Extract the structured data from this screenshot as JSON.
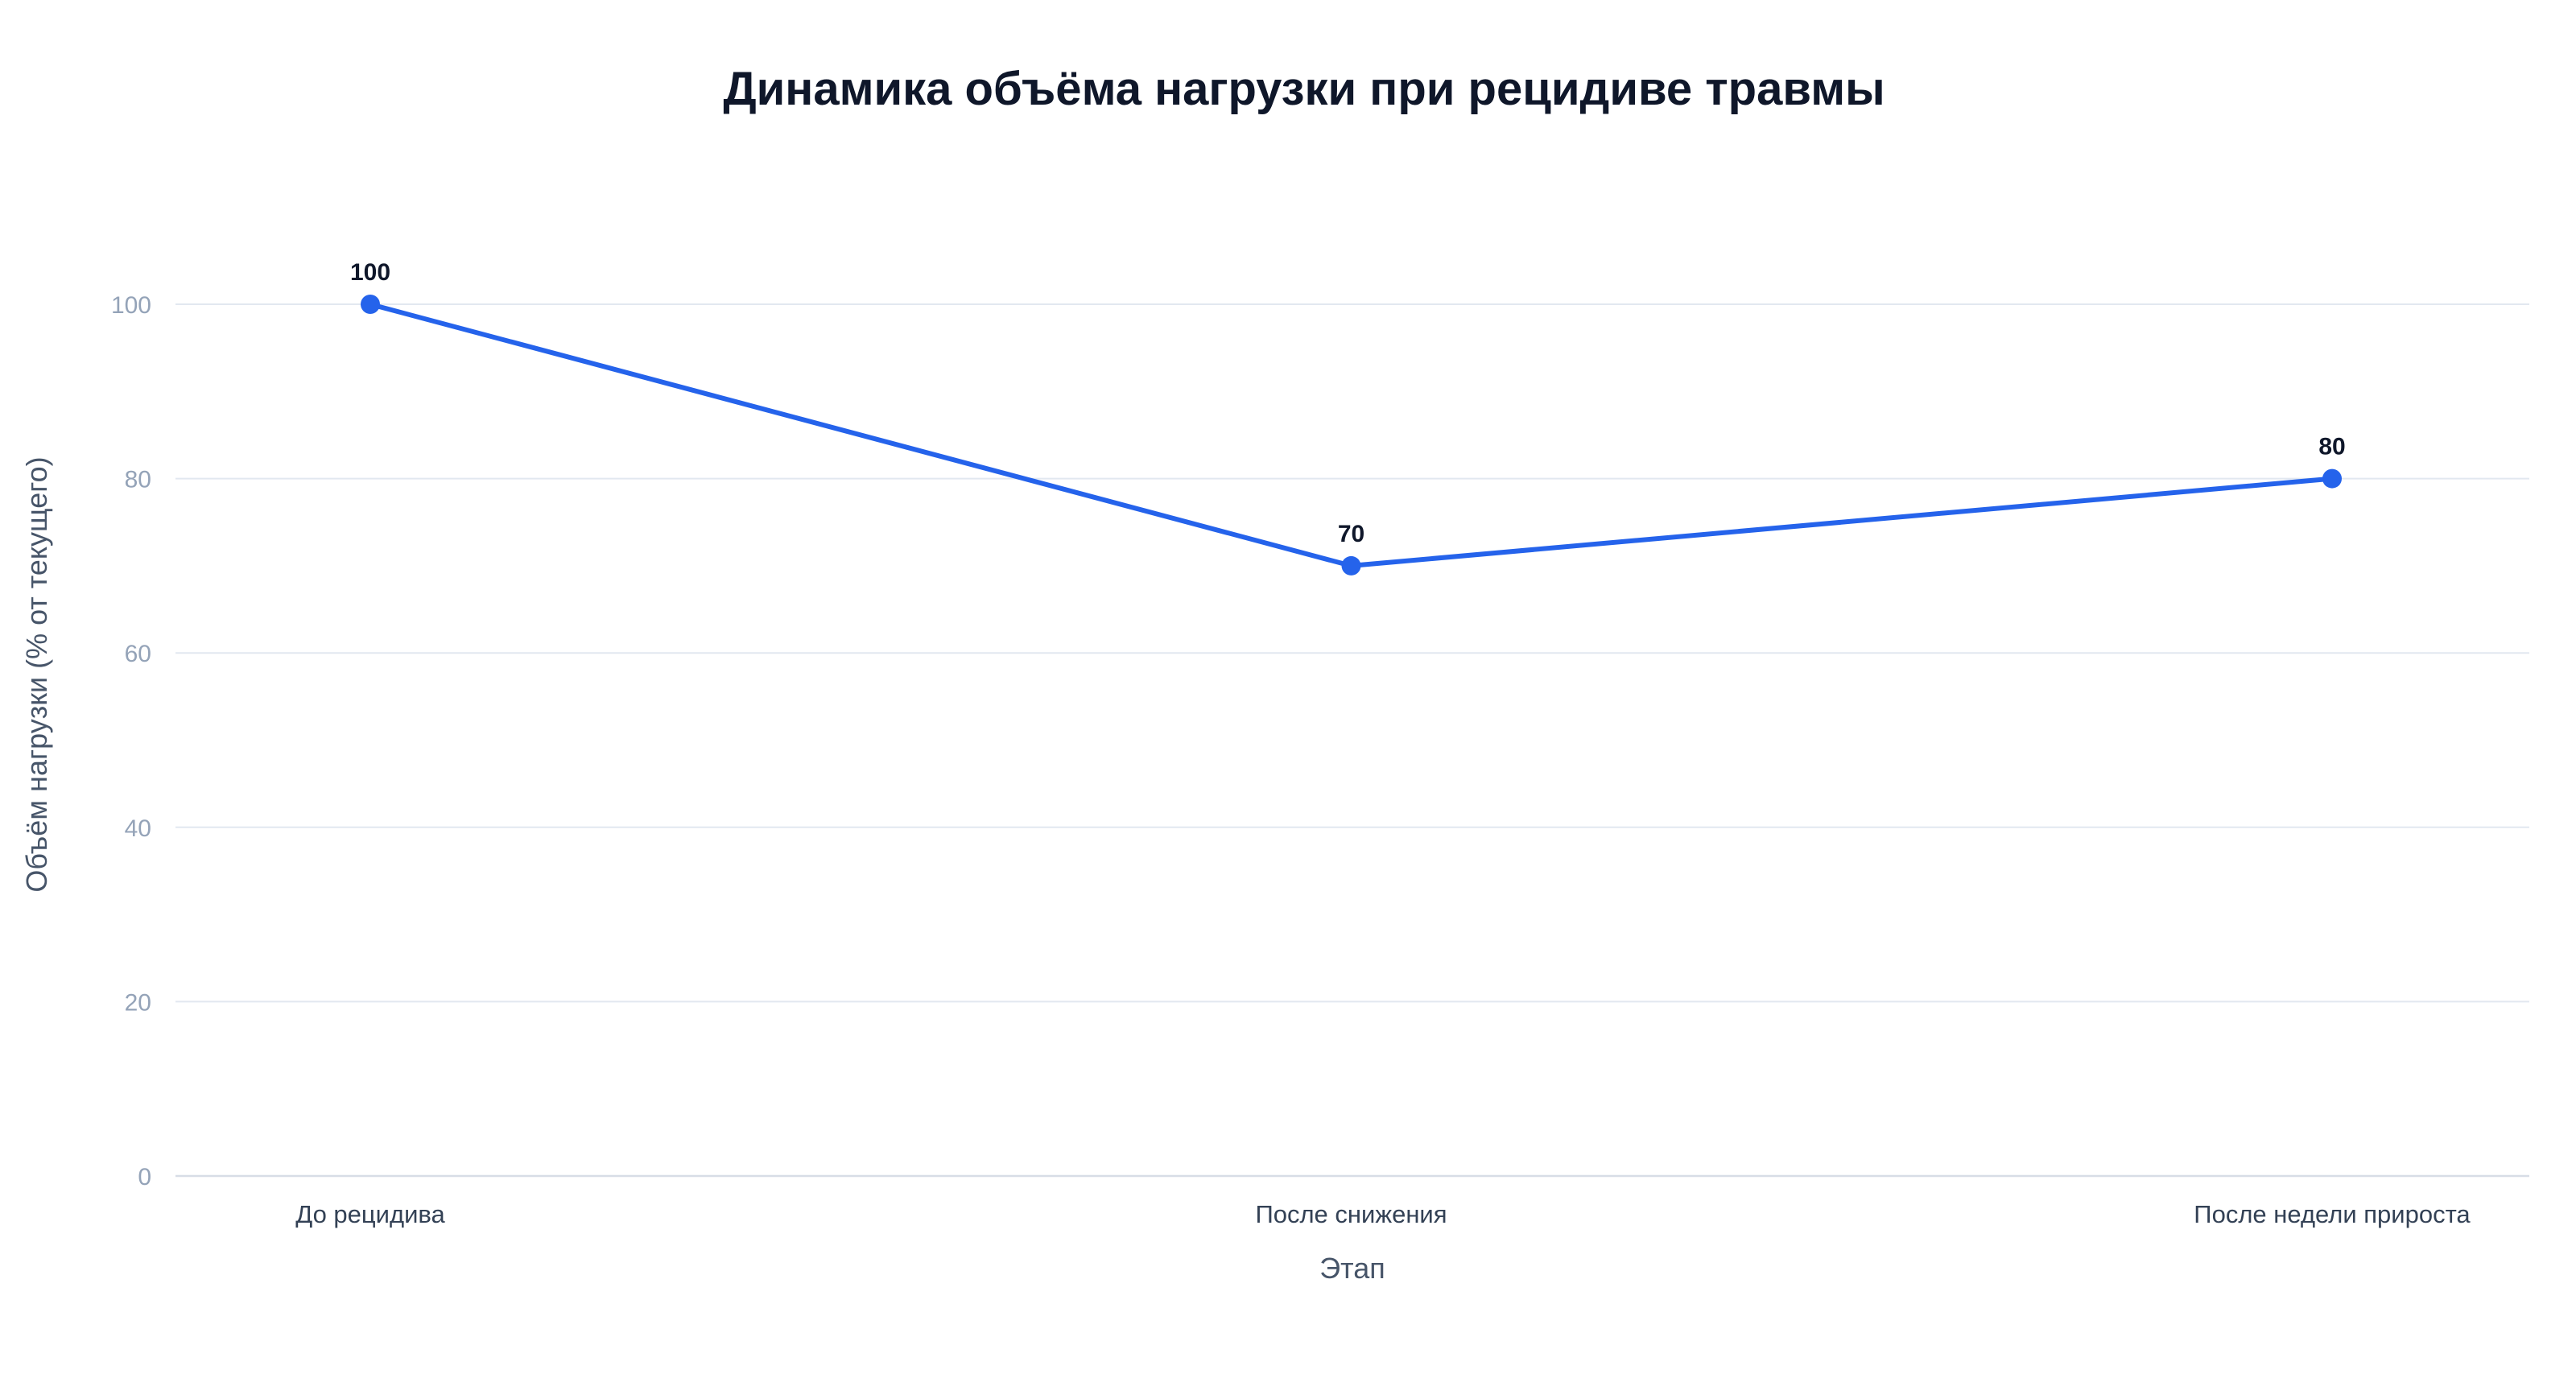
{
  "chart_data": {
    "type": "line",
    "title": "Динамика объёма нагрузки при рецидиве травмы",
    "xlabel": "Этап",
    "ylabel": "Объём нагрузки (% от текущего)",
    "categories": [
      "До рецидива",
      "После снижения",
      "После недели прироста"
    ],
    "series": [
      {
        "values": [
          100,
          70,
          80
        ],
        "color": "#2563eb"
      }
    ],
    "ylim": [
      0,
      110
    ],
    "yticks": [
      0,
      20,
      40,
      60,
      80,
      100
    ],
    "grid": true,
    "data_labels": true,
    "legend": "none"
  }
}
